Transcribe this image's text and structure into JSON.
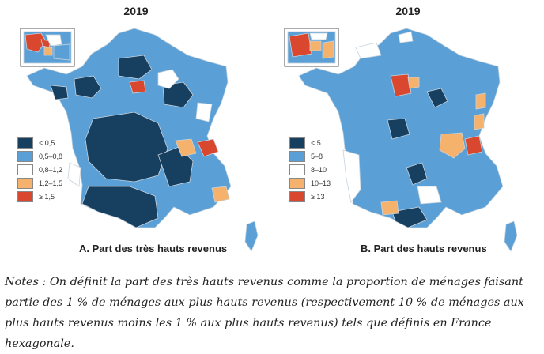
{
  "colors": {
    "c1": "#173f5f",
    "c2": "#5aa0d6",
    "c3": "#ffffff",
    "c4": "#f4b26c",
    "c5": "#d9472f",
    "stroke": "#c7d3de"
  },
  "maps": [
    {
      "year": "2019",
      "caption": "A. Part des très hauts revenus",
      "legend": [
        "< 0,5",
        "0,5–0,8",
        "0,8–1,2",
        "1,2–1,5",
        "≥ 1,5"
      ]
    },
    {
      "year": "2019",
      "caption": "B. Part des hauts revenus",
      "legend": [
        "< 5",
        "5–8",
        "8–10",
        "10–13",
        "≥ 13"
      ]
    }
  ],
  "notes": "Notes : On définit la part des très hauts revenus comme la proportion de ménages faisant partie des 1 % de ménages aux plus hauts revenus (respectivement 10 % de ménages aux plus hauts revenus moins les 1 % aux plus hauts revenus) tels que définis en France hexagonale."
}
